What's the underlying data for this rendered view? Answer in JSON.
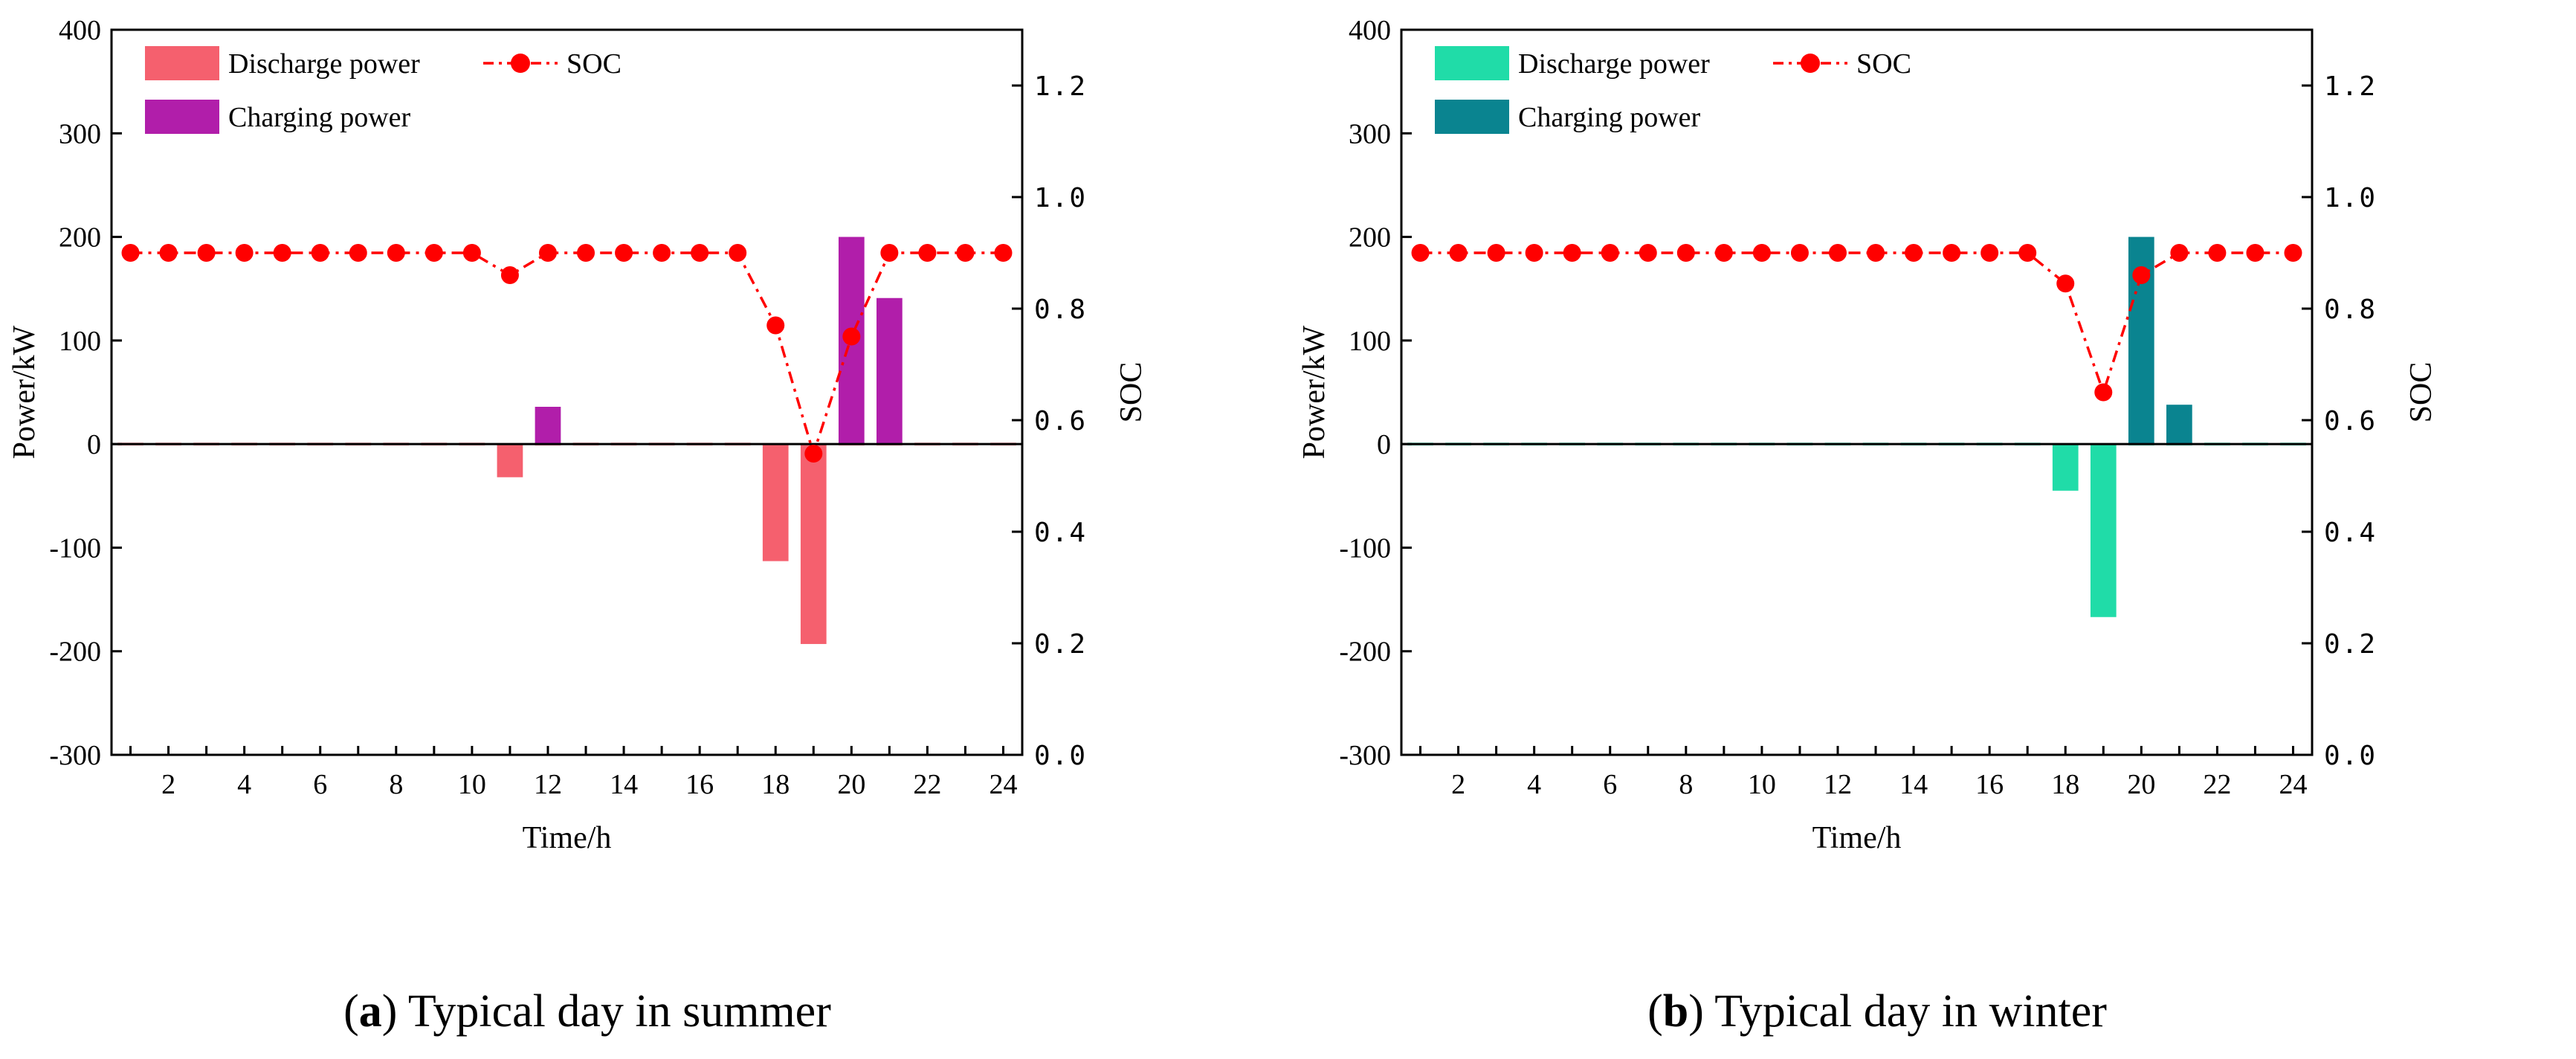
{
  "figure": {
    "panels": [
      {
        "caption_label": "a",
        "caption_text": "Typical day in summer",
        "colors": {
          "discharge": "#F5606E",
          "charge": "#B11EAA",
          "soc": "#FF0000"
        }
      },
      {
        "caption_label": "b",
        "caption_text": "Typical day in winter",
        "colors": {
          "discharge": "#20DCA8",
          "charge": "#0A8490",
          "soc": "#FF0000"
        }
      }
    ]
  },
  "chart_data": [
    {
      "type": "bar",
      "title": "",
      "xlabel": "Time/h",
      "ylabel": "Power/kW",
      "y2label": "SOC",
      "xlim": [
        0.5,
        24.5
      ],
      "ylim": [
        -300,
        400
      ],
      "y2lim": [
        0.0,
        1.3
      ],
      "x": [
        1,
        2,
        3,
        4,
        5,
        6,
        7,
        8,
        9,
        10,
        11,
        12,
        13,
        14,
        15,
        16,
        17,
        18,
        19,
        20,
        21,
        22,
        23,
        24
      ],
      "x_ticks": [
        2,
        4,
        6,
        8,
        10,
        12,
        14,
        16,
        18,
        20,
        22,
        24
      ],
      "y_ticks": [
        -300,
        -200,
        -100,
        0,
        100,
        200,
        300,
        400
      ],
      "y2_ticks": [
        "0.0",
        "0.2",
        "0.4",
        "0.6",
        "0.8",
        "1.0",
        "1.2"
      ],
      "legend": {
        "placement": "top-left",
        "discharge_label": "Discharge power",
        "charge_label": "Charging power",
        "soc_label": "SOC"
      },
      "series": [
        {
          "name": "Discharge power",
          "values": [
            0,
            0,
            0,
            0,
            0,
            0,
            0,
            0,
            0,
            0,
            -32,
            0,
            0,
            0,
            0,
            0,
            0,
            -113,
            -193,
            0,
            0,
            0,
            0,
            0
          ]
        },
        {
          "name": "Charging power",
          "values": [
            0,
            0,
            0,
            0,
            0,
            0,
            0,
            0,
            0,
            0,
            0,
            36,
            0,
            0,
            0,
            0,
            0,
            0,
            0,
            200,
            141,
            0,
            0,
            0
          ]
        },
        {
          "name": "SOC",
          "axis": "right",
          "values": [
            0.9,
            0.9,
            0.9,
            0.9,
            0.9,
            0.9,
            0.9,
            0.9,
            0.9,
            0.9,
            0.86,
            0.9,
            0.9,
            0.9,
            0.9,
            0.9,
            0.9,
            0.77,
            0.54,
            0.75,
            0.9,
            0.9,
            0.9,
            0.9
          ]
        }
      ]
    },
    {
      "type": "bar",
      "title": "",
      "xlabel": "Time/h",
      "ylabel": "Power/kW",
      "y2label": "SOC",
      "xlim": [
        0.5,
        24.5
      ],
      "ylim": [
        -300,
        400
      ],
      "y2lim": [
        0.0,
        1.3
      ],
      "x": [
        1,
        2,
        3,
        4,
        5,
        6,
        7,
        8,
        9,
        10,
        11,
        12,
        13,
        14,
        15,
        16,
        17,
        18,
        19,
        20,
        21,
        22,
        23,
        24
      ],
      "x_ticks": [
        2,
        4,
        6,
        8,
        10,
        12,
        14,
        16,
        18,
        20,
        22,
        24
      ],
      "y_ticks": [
        -300,
        -200,
        -100,
        0,
        100,
        200,
        300,
        400
      ],
      "y2_ticks": [
        "0.0",
        "0.2",
        "0.4",
        "0.6",
        "0.8",
        "1.0",
        "1.2"
      ],
      "legend": {
        "placement": "top-left",
        "discharge_label": "Discharge power",
        "charge_label": "Charging power",
        "soc_label": "SOC"
      },
      "series": [
        {
          "name": "Discharge power",
          "values": [
            0,
            0,
            0,
            0,
            0,
            0,
            0,
            0,
            0,
            0,
            0,
            0,
            0,
            0,
            0,
            0,
            0,
            -45,
            -167,
            0,
            0,
            0,
            0,
            0
          ]
        },
        {
          "name": "Charging power",
          "values": [
            0,
            0,
            0,
            0,
            0,
            0,
            0,
            0,
            0,
            0,
            0,
            0,
            0,
            0,
            0,
            0,
            0,
            0,
            0,
            200,
            38,
            0,
            0,
            0
          ]
        },
        {
          "name": "SOC",
          "axis": "right",
          "values": [
            0.9,
            0.9,
            0.9,
            0.9,
            0.9,
            0.9,
            0.9,
            0.9,
            0.9,
            0.9,
            0.9,
            0.9,
            0.9,
            0.9,
            0.9,
            0.9,
            0.9,
            0.845,
            0.65,
            0.86,
            0.9,
            0.9,
            0.9,
            0.9
          ]
        }
      ]
    }
  ]
}
